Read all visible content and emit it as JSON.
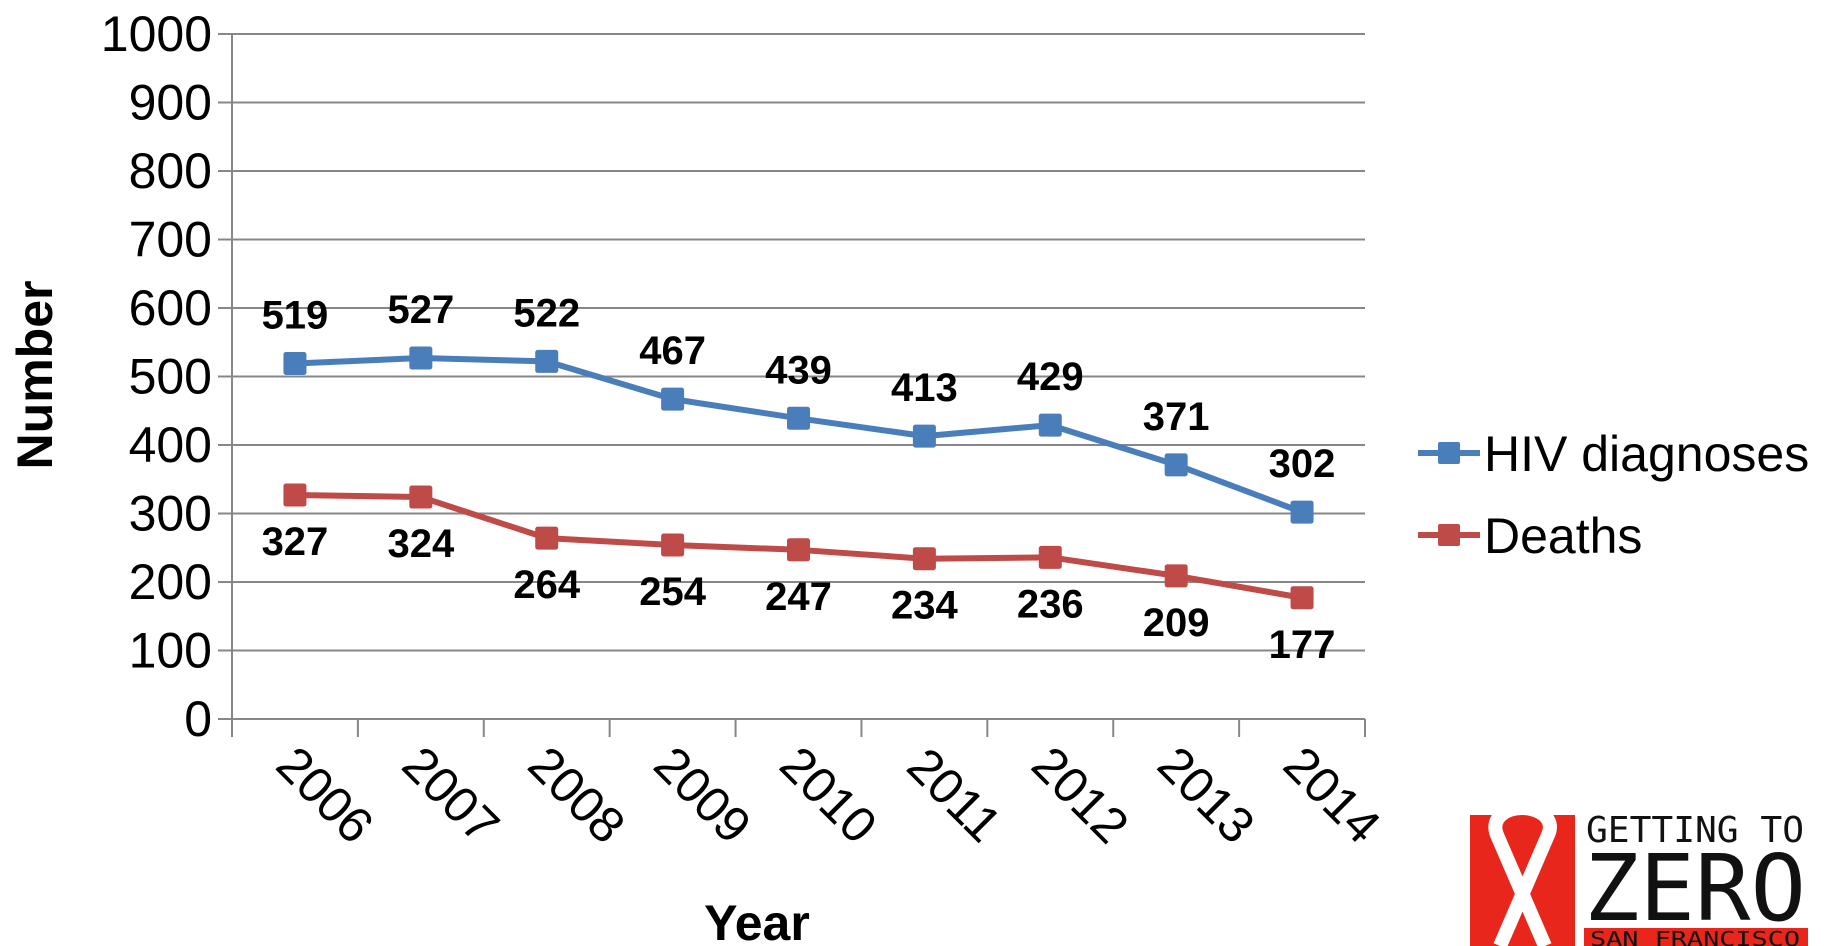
{
  "chart_data": {
    "type": "line",
    "categories": [
      "2006",
      "2007",
      "2008",
      "2009",
      "2010",
      "2011",
      "2012",
      "2013",
      "2014"
    ],
    "series": [
      {
        "name": "HIV diagnoses",
        "values": [
          519,
          527,
          522,
          467,
          439,
          413,
          429,
          371,
          302
        ],
        "color": "#4a7ebb",
        "labels": [
          "519",
          "527",
          "522",
          "467",
          "439",
          "413",
          "429",
          "371",
          "302"
        ],
        "label_position": "above"
      },
      {
        "name": "Deaths",
        "values": [
          327,
          324,
          264,
          254,
          247,
          234,
          236,
          209,
          177
        ],
        "color": "#be4b48",
        "labels": [
          "327",
          "324",
          "264",
          "254",
          "247",
          "234",
          "236",
          "209",
          "177"
        ],
        "label_position": "below"
      }
    ],
    "xlabel": "Year",
    "ylabel": "Number",
    "ylim": [
      0,
      1000
    ],
    "yticks": [
      "0",
      "100",
      "200",
      "300",
      "400",
      "500",
      "600",
      "700",
      "800",
      "900",
      "1000"
    ],
    "grid": true,
    "legend_position": "right",
    "marker": "square"
  },
  "logo": {
    "line1": "GETTING TO",
    "line2": "ZERO",
    "line3": "SAN FRANCISCO",
    "accent_color": "#e8261b"
  }
}
